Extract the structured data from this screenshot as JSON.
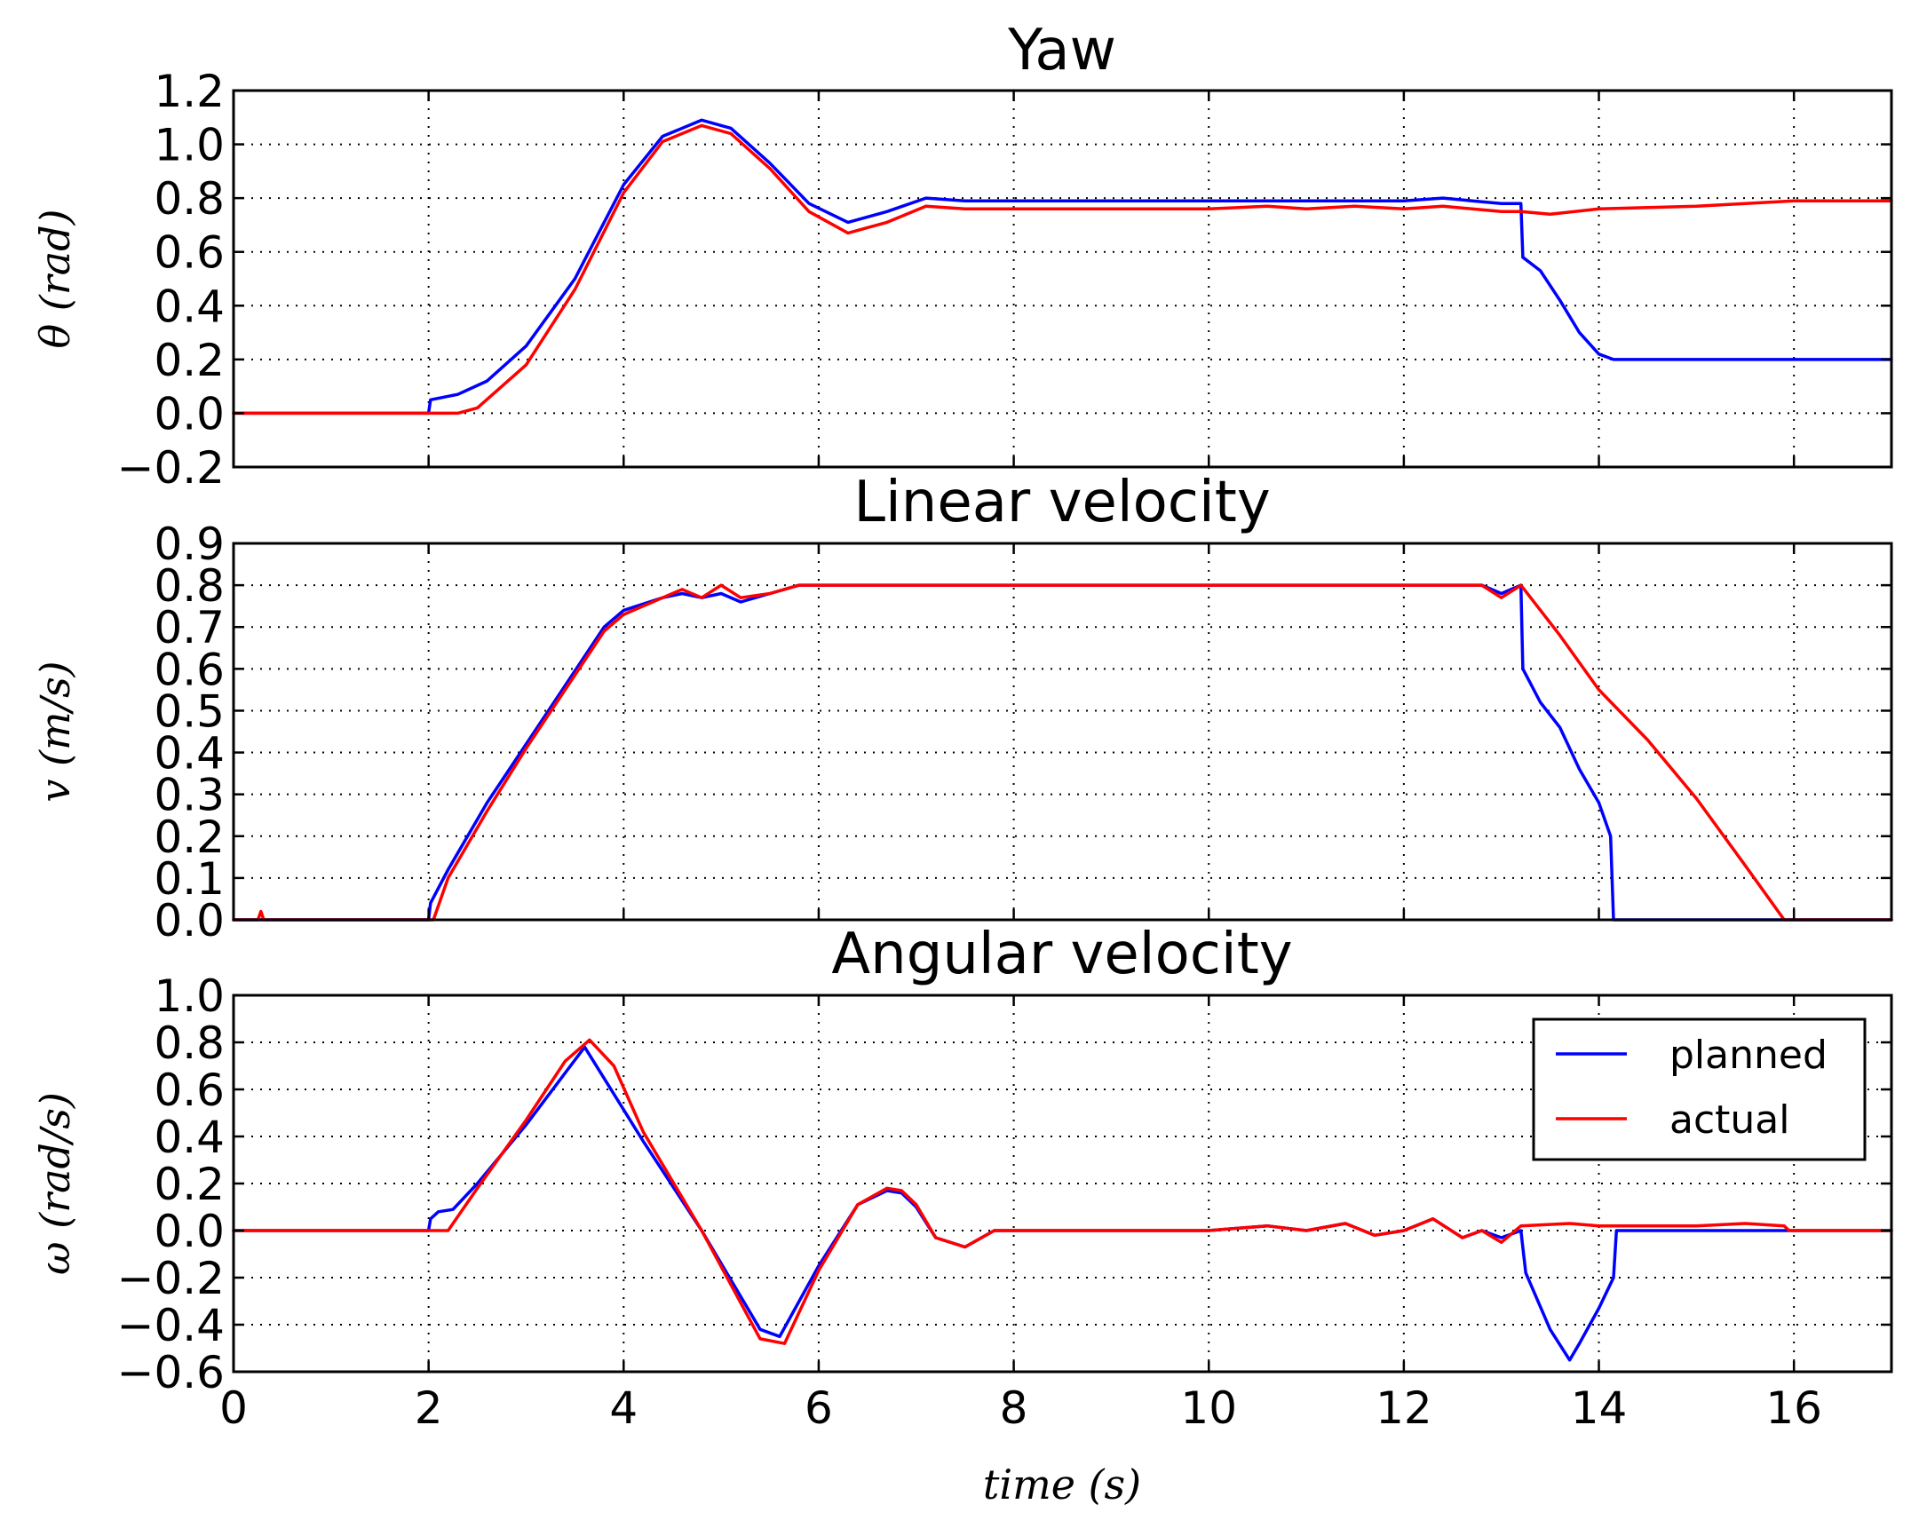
{
  "colors": {
    "planned": "#0000ff",
    "actual": "#ff0000"
  },
  "xlabel": "time (s)",
  "legend": {
    "entries": [
      "planned",
      "actual"
    ],
    "placement": "top-right of bottom panel"
  },
  "chart_data": [
    {
      "type": "line",
      "title": "Yaw",
      "ylabel": "θ (rad)",
      "xlim": [
        0,
        17
      ],
      "ylim": [
        -0.2,
        1.2
      ],
      "x_ticks": [
        "0",
        "2",
        "4",
        "6",
        "8",
        "10",
        "12",
        "14",
        "16"
      ],
      "y_ticks": [
        "1.2",
        "1.0",
        "0.8",
        "0.6",
        "0.4",
        "0.2",
        "0.0",
        "−0.2"
      ],
      "grid": true,
      "series": [
        {
          "name": "planned",
          "color": "#0000ff",
          "x": [
            0,
            2.0,
            2.02,
            2.3,
            2.6,
            3.0,
            3.5,
            4.0,
            4.4,
            4.8,
            5.1,
            5.5,
            5.9,
            6.3,
            6.7,
            7.1,
            7.5,
            8.0,
            9.0,
            10.0,
            10.6,
            11.0,
            11.5,
            12.0,
            12.4,
            12.7,
            13.0,
            13.2,
            13.22,
            13.4,
            13.6,
            13.8,
            14.0,
            14.15,
            15,
            16,
            17
          ],
          "values": [
            0.0,
            0.0,
            0.05,
            0.07,
            0.12,
            0.25,
            0.5,
            0.85,
            1.03,
            1.09,
            1.06,
            0.93,
            0.78,
            0.71,
            0.75,
            0.8,
            0.79,
            0.79,
            0.79,
            0.79,
            0.79,
            0.79,
            0.79,
            0.79,
            0.8,
            0.79,
            0.78,
            0.78,
            0.58,
            0.53,
            0.42,
            0.3,
            0.22,
            0.2,
            0.2,
            0.2,
            0.2
          ]
        },
        {
          "name": "actual",
          "color": "#ff0000",
          "x": [
            0,
            2.0,
            2.3,
            2.5,
            3.0,
            3.5,
            4.0,
            4.4,
            4.8,
            5.1,
            5.5,
            5.9,
            6.3,
            6.7,
            7.1,
            7.5,
            8.0,
            9.0,
            10.0,
            10.6,
            11.0,
            11.5,
            12.0,
            12.4,
            12.7,
            13.0,
            13.2,
            13.5,
            14.0,
            15.0,
            16.0,
            17.0
          ],
          "values": [
            0.0,
            0.0,
            0.0,
            0.02,
            0.18,
            0.46,
            0.82,
            1.01,
            1.07,
            1.04,
            0.91,
            0.75,
            0.67,
            0.71,
            0.77,
            0.76,
            0.76,
            0.76,
            0.76,
            0.77,
            0.76,
            0.77,
            0.76,
            0.77,
            0.76,
            0.75,
            0.75,
            0.74,
            0.76,
            0.77,
            0.79,
            0.79
          ]
        }
      ]
    },
    {
      "type": "line",
      "title": "Linear velocity",
      "ylabel": "v (m/s)",
      "xlim": [
        0,
        17
      ],
      "ylim": [
        0.0,
        0.9
      ],
      "x_ticks": [
        "0",
        "2",
        "4",
        "6",
        "8",
        "10",
        "12",
        "14",
        "16"
      ],
      "y_ticks": [
        "0.9",
        "0.8",
        "0.7",
        "0.6",
        "0.5",
        "0.4",
        "0.3",
        "0.2",
        "0.1",
        "0.0"
      ],
      "grid": true,
      "series": [
        {
          "name": "planned",
          "color": "#0000ff",
          "x": [
            0,
            2.0,
            2.02,
            2.2,
            2.6,
            3.0,
            3.4,
            3.8,
            4.0,
            4.4,
            4.6,
            4.8,
            5.0,
            5.2,
            5.5,
            5.8,
            6.0,
            7.0,
            8.0,
            10.0,
            12.0,
            12.8,
            13.0,
            13.2,
            13.22,
            13.4,
            13.6,
            13.8,
            14.0,
            14.12,
            14.15,
            14.2,
            17.0
          ],
          "values": [
            0.0,
            0.0,
            0.04,
            0.12,
            0.28,
            0.42,
            0.56,
            0.7,
            0.74,
            0.77,
            0.78,
            0.77,
            0.78,
            0.76,
            0.78,
            0.8,
            0.8,
            0.8,
            0.8,
            0.8,
            0.8,
            0.8,
            0.78,
            0.8,
            0.6,
            0.52,
            0.46,
            0.36,
            0.28,
            0.2,
            0.0,
            0.0,
            0.0
          ]
        },
        {
          "name": "actual",
          "color": "#ff0000",
          "x": [
            0,
            0.25,
            0.28,
            0.31,
            2.0,
            2.05,
            2.2,
            2.6,
            3.0,
            3.4,
            3.8,
            4.0,
            4.4,
            4.6,
            4.8,
            5.0,
            5.2,
            5.5,
            5.8,
            6.0,
            7.0,
            8.0,
            10.0,
            12.0,
            12.8,
            13.0,
            13.2,
            13.6,
            14.0,
            14.5,
            15.0,
            15.5,
            15.9,
            16.0,
            17.0
          ],
          "values": [
            0.0,
            0.0,
            0.02,
            0.0,
            0.0,
            0.0,
            0.1,
            0.26,
            0.41,
            0.55,
            0.69,
            0.73,
            0.77,
            0.79,
            0.77,
            0.8,
            0.77,
            0.78,
            0.8,
            0.8,
            0.8,
            0.8,
            0.8,
            0.8,
            0.8,
            0.77,
            0.8,
            0.68,
            0.55,
            0.43,
            0.29,
            0.13,
            0.0,
            0.0,
            0.0
          ]
        }
      ]
    },
    {
      "type": "line",
      "title": "Angular velocity",
      "ylabel": "ω (rad/s)",
      "xlabel": "time (s)",
      "xlim": [
        0,
        17
      ],
      "ylim": [
        -0.6,
        1.0
      ],
      "x_ticks": [
        "0",
        "2",
        "4",
        "6",
        "8",
        "10",
        "12",
        "14",
        "16"
      ],
      "y_ticks": [
        "1.0",
        "0.8",
        "0.6",
        "0.4",
        "0.2",
        "0.0",
        "−0.2",
        "−0.4",
        "−0.6"
      ],
      "grid": true,
      "legend_placement": "top-right",
      "series": [
        {
          "name": "planned",
          "color": "#0000ff",
          "x": [
            0,
            2.0,
            2.02,
            2.1,
            2.25,
            2.5,
            3.0,
            3.6,
            4.2,
            4.8,
            5.4,
            5.6,
            6.0,
            6.4,
            6.7,
            6.85,
            7.0,
            7.2,
            7.5,
            7.8,
            8.0,
            9.0,
            10.0,
            10.6,
            11.0,
            11.4,
            11.7,
            12.0,
            12.3,
            12.6,
            12.8,
            13.0,
            13.2,
            13.25,
            13.5,
            13.7,
            13.8,
            14.0,
            14.15,
            14.18,
            14.5,
            17.0
          ],
          "values": [
            0.0,
            0.0,
            0.05,
            0.08,
            0.09,
            0.2,
            0.45,
            0.78,
            0.38,
            0.0,
            -0.42,
            -0.45,
            -0.15,
            0.11,
            0.17,
            0.16,
            0.1,
            -0.03,
            -0.07,
            0.0,
            0.0,
            0.0,
            0.0,
            0.02,
            0.0,
            0.03,
            -0.02,
            0.0,
            0.05,
            -0.03,
            0.0,
            -0.03,
            0.0,
            -0.18,
            -0.42,
            -0.55,
            -0.48,
            -0.33,
            -0.2,
            0.0,
            0.0,
            0.0
          ]
        },
        {
          "name": "actual",
          "color": "#ff0000",
          "x": [
            0,
            2.1,
            2.2,
            2.5,
            3.0,
            3.4,
            3.65,
            3.9,
            4.2,
            4.8,
            5.4,
            5.65,
            6.0,
            6.4,
            6.7,
            6.85,
            7.0,
            7.2,
            7.5,
            7.8,
            8.0,
            9.0,
            10.0,
            10.6,
            11.0,
            11.4,
            11.7,
            12.0,
            12.3,
            12.6,
            12.8,
            13.0,
            13.2,
            13.7,
            14.0,
            15.0,
            15.5,
            15.9,
            15.95,
            17.0
          ],
          "values": [
            0.0,
            0.0,
            0.0,
            0.18,
            0.47,
            0.72,
            0.81,
            0.7,
            0.42,
            0.0,
            -0.46,
            -0.48,
            -0.17,
            0.11,
            0.18,
            0.17,
            0.11,
            -0.03,
            -0.07,
            0.0,
            0.0,
            0.0,
            0.0,
            0.02,
            0.0,
            0.03,
            -0.02,
            0.0,
            0.05,
            -0.03,
            0.0,
            -0.05,
            0.02,
            0.03,
            0.02,
            0.02,
            0.03,
            0.02,
            0.0,
            0.0
          ]
        }
      ]
    }
  ]
}
